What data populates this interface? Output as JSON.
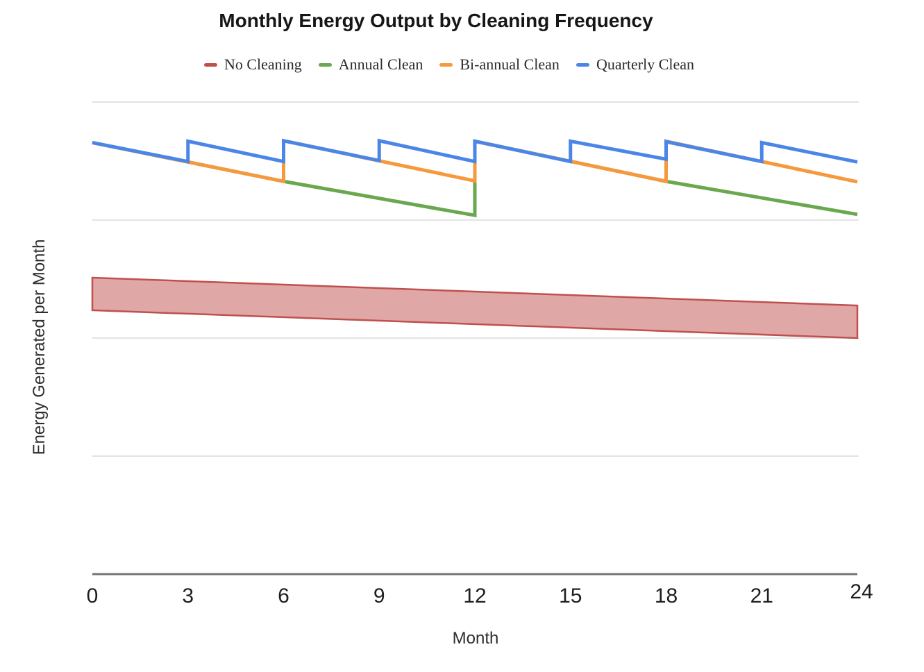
{
  "page": {
    "background": "#ffffff"
  },
  "chart": {
    "title": "Monthly Energy Output by Cleaning Frequency",
    "x_axis": {
      "label": "Month",
      "tick_labels": [
        "0",
        "3",
        "6",
        "9",
        "12",
        "15",
        "18",
        "21",
        "24"
      ]
    },
    "y_axis": {
      "label": "Energy Generated per Month",
      "tick_labels": []
    },
    "legend": {
      "items": [
        {
          "label": "No Cleaning",
          "color": "#c0504d"
        },
        {
          "label": "Annual Clean",
          "color": "#6aa84f"
        },
        {
          "label": "Bi-annual Clean",
          "color": "#f6993d"
        },
        {
          "label": "Quarterly Clean",
          "color": "#4a86e8"
        }
      ]
    }
  },
  "chart_data": {
    "type": "line",
    "title": "Monthly Energy Output by Cleaning Frequency",
    "xlabel": "Month",
    "ylabel": "Energy Generated per Month",
    "x_ticks": [
      0,
      3,
      6,
      9,
      12,
      15,
      18,
      21,
      24
    ],
    "xlim": [
      0,
      24
    ],
    "ylim": [
      0,
      100
    ],
    "y_gridlines": [
      25,
      50,
      75,
      100
    ],
    "y_tick_labels_shown": false,
    "grid": "horizontal",
    "legend_position": "top",
    "note": "Y-axis has no numeric tick labels; values are estimated on a 0-100 scale where gridlines sit at 25-unit intervals. Sawtooth lines reset at each cleaning; No Cleaning is drawn as a shaded declining band.",
    "series": [
      {
        "name": "No Cleaning",
        "type": "band",
        "color": "#c0504d",
        "fill_opacity": 0.5,
        "upper": [
          [
            0,
            62.8
          ],
          [
            24,
            56.9
          ]
        ],
        "lower": [
          [
            0,
            55.9
          ],
          [
            24,
            50.0
          ]
        ]
      },
      {
        "name": "Annual Clean",
        "type": "line",
        "color": "#6aa84f",
        "points": [
          [
            0,
            91.4
          ],
          [
            6,
            83.2
          ],
          [
            12,
            76.0
          ],
          [
            12,
            91.7
          ],
          [
            18,
            83.2
          ],
          [
            24,
            76.2
          ]
        ]
      },
      {
        "name": "Bi-annual Clean",
        "type": "line",
        "color": "#f6993d",
        "points": [
          [
            0,
            91.4
          ],
          [
            6,
            83.2
          ],
          [
            6,
            91.8
          ],
          [
            12,
            83.3
          ],
          [
            12,
            91.7
          ],
          [
            18,
            83.2
          ],
          [
            18,
            91.7
          ],
          [
            24,
            83.1
          ]
        ]
      },
      {
        "name": "Quarterly Clean",
        "type": "line",
        "color": "#4a86e8",
        "points": [
          [
            0,
            91.4
          ],
          [
            3,
            87.4
          ],
          [
            3,
            91.7
          ],
          [
            6,
            87.4
          ],
          [
            6,
            91.8
          ],
          [
            9,
            87.6
          ],
          [
            9,
            91.8
          ],
          [
            12,
            87.4
          ],
          [
            12,
            91.7
          ],
          [
            15,
            87.4
          ],
          [
            15,
            91.7
          ],
          [
            18,
            87.9
          ],
          [
            18,
            91.6
          ],
          [
            21,
            87.4
          ],
          [
            21,
            91.4
          ],
          [
            24,
            87.3
          ]
        ]
      }
    ]
  }
}
